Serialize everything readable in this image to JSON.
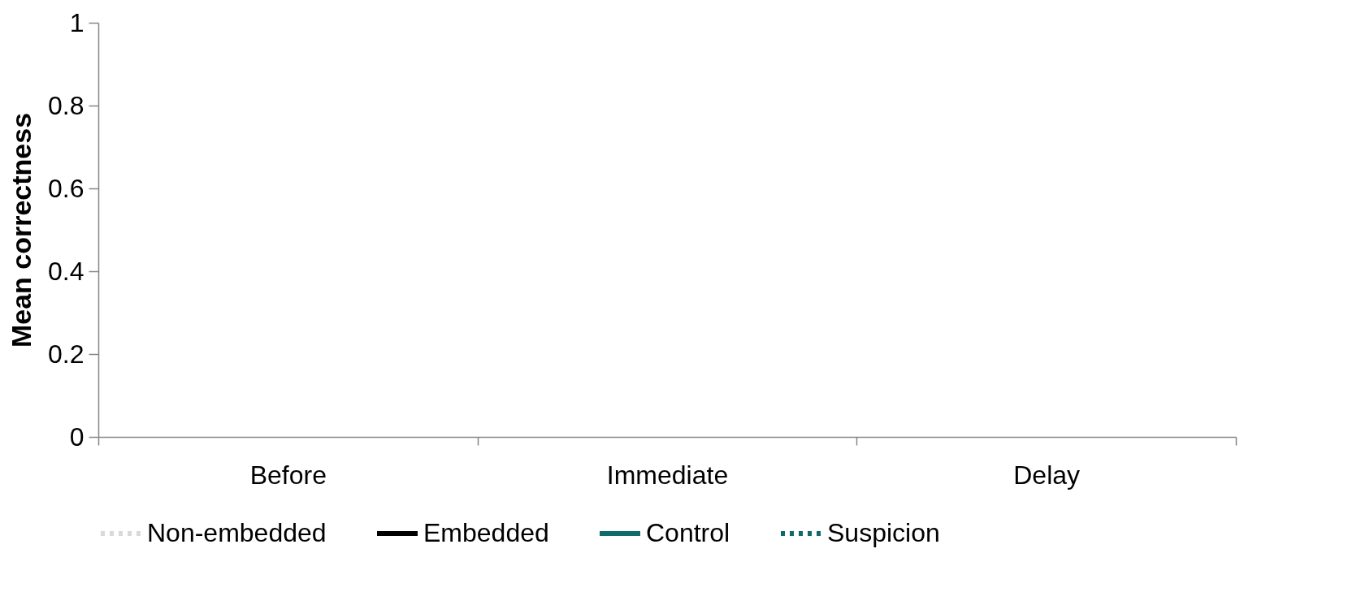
{
  "chart_data": {
    "type": "line",
    "ylabel": "Mean correctness",
    "categories": [
      "Before",
      "Immediate",
      "Delay"
    ],
    "series": [
      {
        "name": "Non-embedded",
        "color": "#d9d9d9",
        "line_style": "dotted",
        "values": [
          null,
          null,
          null
        ]
      },
      {
        "name": "Embedded",
        "color": "#000000",
        "line_style": "solid",
        "values": [
          null,
          null,
          null
        ]
      },
      {
        "name": "Control",
        "color": "#0f6b6b",
        "line_style": "solid",
        "values": [
          null,
          null,
          null
        ]
      },
      {
        "name": "Suspicion",
        "color": "#0f6b6b",
        "line_style": "dotted",
        "values": [
          null,
          null,
          null
        ]
      }
    ],
    "ylim": [
      0,
      1
    ],
    "yticks": [
      0,
      0.2,
      0.4,
      0.6,
      0.8,
      1
    ],
    "grid": false,
    "legend": "bottom"
  }
}
